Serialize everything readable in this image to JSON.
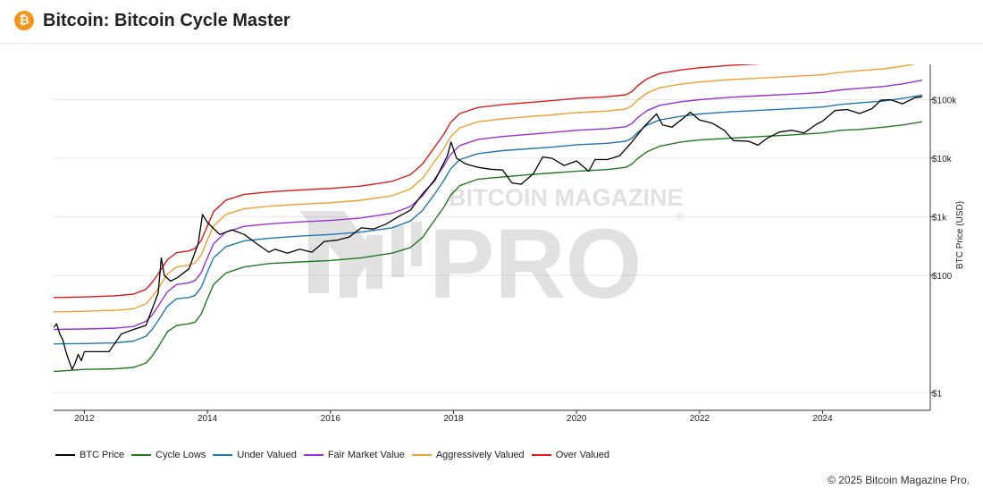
{
  "header": {
    "icon": "bitcoin-icon",
    "icon_glyph": "₿",
    "title": "Bitcoin: Bitcoin Cycle Master"
  },
  "watermark": {
    "line1": "BITCOIN MAGAZINE",
    "line2": "PRO",
    "registered": "®"
  },
  "footer": {
    "copyright": "© 2025 Bitcoin Magazine Pro."
  },
  "chart_data": {
    "type": "line",
    "title": "",
    "xlabel": "",
    "ylabel": "BTC Price (USD)",
    "yscale": "log",
    "ylim": [
      0.5,
      400000
    ],
    "xlim": [
      2011.5,
      2025.75
    ],
    "x_ticks": [
      2012,
      2014,
      2016,
      2018,
      2020,
      2022,
      2024
    ],
    "x_tick_labels": [
      "2012",
      "2014",
      "2016",
      "2018",
      "2020",
      "2022",
      "2024"
    ],
    "y_ticks": [
      1,
      100,
      1000,
      10000,
      100000
    ],
    "y_tick_labels": [
      "$1",
      "$100",
      "$1k",
      "$10k",
      "$100k"
    ],
    "grid": true,
    "legend_position": "bottom-left",
    "series": [
      {
        "name": "BTC Price",
        "color": "#000000",
        "x": [
          2011.5,
          2011.55,
          2011.6,
          2011.65,
          2011.7,
          2011.75,
          2011.8,
          2011.85,
          2011.9,
          2011.95,
          2012.0,
          2012.2,
          2012.4,
          2012.6,
          2012.8,
          2013.0,
          2013.2,
          2013.25,
          2013.3,
          2013.4,
          2013.5,
          2013.7,
          2013.85,
          2013.92,
          2014.0,
          2014.2,
          2014.4,
          2014.6,
          2014.8,
          2015.0,
          2015.1,
          2015.3,
          2015.5,
          2015.7,
          2015.9,
          2016.1,
          2016.3,
          2016.5,
          2016.7,
          2016.9,
          2017.1,
          2017.3,
          2017.5,
          2017.7,
          2017.9,
          2017.96,
          2018.05,
          2018.2,
          2018.4,
          2018.6,
          2018.8,
          2018.95,
          2019.1,
          2019.3,
          2019.45,
          2019.6,
          2019.8,
          2020.0,
          2020.2,
          2020.3,
          2020.5,
          2020.7,
          2020.9,
          2021.1,
          2021.3,
          2021.4,
          2021.55,
          2021.7,
          2021.85,
          2022.0,
          2022.2,
          2022.4,
          2022.55,
          2022.8,
          2022.95,
          2023.1,
          2023.3,
          2023.5,
          2023.7,
          2023.9,
          2024.0,
          2024.2,
          2024.4,
          2024.6,
          2024.8,
          2024.95,
          2025.1,
          2025.3,
          2025.5,
          2025.62
        ],
        "values": [
          13,
          15,
          10,
          8,
          5,
          3.5,
          2.5,
          3.2,
          4.5,
          3.5,
          5,
          5,
          5,
          10,
          12,
          14,
          50,
          200,
          100,
          80,
          90,
          130,
          350,
          1100,
          800,
          500,
          600,
          500,
          350,
          250,
          280,
          240,
          280,
          250,
          380,
          400,
          450,
          650,
          620,
          750,
          1000,
          1300,
          2500,
          4200,
          11000,
          19000,
          10000,
          8000,
          7000,
          6500,
          6300,
          3800,
          3600,
          5500,
          10500,
          10000,
          7500,
          9000,
          6000,
          9500,
          9500,
          11000,
          19000,
          35000,
          57000,
          37000,
          34000,
          45000,
          61000,
          45000,
          40000,
          30000,
          20000,
          19500,
          16700,
          22000,
          28000,
          30000,
          27000,
          38000,
          43000,
          65000,
          68000,
          58000,
          70000,
          98000,
          100000,
          85000,
          108000,
          112000
        ]
      },
      {
        "name": "Cycle Lows",
        "color": "#1f7a1f",
        "x": [
          2011.5,
          2012.0,
          2012.5,
          2012.8,
          2013.0,
          2013.1,
          2013.2,
          2013.35,
          2013.5,
          2013.7,
          2013.8,
          2013.9,
          2014.0,
          2014.1,
          2014.3,
          2014.6,
          2015.0,
          2015.5,
          2016.0,
          2016.5,
          2017.0,
          2017.3,
          2017.5,
          2017.7,
          2017.85,
          2017.95,
          2018.1,
          2018.4,
          2018.8,
          2019.2,
          2019.6,
          2020.0,
          2020.5,
          2020.8,
          2020.9,
          2021.0,
          2021.15,
          2021.35,
          2021.7,
          2022.0,
          2022.5,
          2023.0,
          2023.5,
          2024.0,
          2024.3,
          2024.6,
          2025.0,
          2025.3,
          2025.62
        ],
        "values": [
          2.3,
          2.5,
          2.55,
          2.7,
          3.2,
          4.2,
          6,
          11,
          14,
          15,
          16,
          22,
          40,
          70,
          110,
          140,
          160,
          170,
          180,
          200,
          240,
          300,
          450,
          900,
          1500,
          2300,
          3400,
          4400,
          4800,
          5200,
          5600,
          6000,
          6400,
          7000,
          8000,
          10000,
          13000,
          16000,
          19000,
          20500,
          22000,
          23500,
          25000,
          27000,
          30000,
          31000,
          34000,
          37000,
          42000
        ]
      },
      {
        "name": "Under Valued",
        "color": "#1f77b4",
        "x": [
          2011.5,
          2012.0,
          2012.5,
          2012.8,
          2013.0,
          2013.1,
          2013.2,
          2013.35,
          2013.5,
          2013.7,
          2013.8,
          2013.9,
          2014.0,
          2014.1,
          2014.3,
          2014.6,
          2015.0,
          2015.5,
          2016.0,
          2016.5,
          2017.0,
          2017.3,
          2017.5,
          2017.7,
          2017.85,
          2017.95,
          2018.1,
          2018.4,
          2018.8,
          2019.2,
          2019.6,
          2020.0,
          2020.5,
          2020.8,
          2020.9,
          2021.0,
          2021.15,
          2021.35,
          2021.7,
          2022.0,
          2022.5,
          2023.0,
          2023.5,
          2024.0,
          2024.3,
          2024.6,
          2025.0,
          2025.3,
          2025.62
        ],
        "values": [
          6.8,
          6.9,
          7.1,
          7.6,
          9.2,
          12,
          17,
          30,
          40,
          42,
          46,
          63,
          115,
          200,
          310,
          390,
          430,
          470,
          500,
          550,
          650,
          850,
          1300,
          2500,
          4300,
          6500,
          9500,
          12000,
          13500,
          14500,
          15500,
          17000,
          18000,
          19500,
          22000,
          28000,
          37000,
          45000,
          52000,
          57000,
          62000,
          66000,
          70000,
          75000,
          83000,
          88000,
          95000,
          105000,
          120000
        ]
      },
      {
        "name": "Fair Market Value",
        "color": "#9b30d9",
        "x": [
          2011.5,
          2012.0,
          2012.5,
          2012.8,
          2013.0,
          2013.1,
          2013.2,
          2013.35,
          2013.5,
          2013.7,
          2013.8,
          2013.9,
          2014.0,
          2014.1,
          2014.3,
          2014.6,
          2015.0,
          2015.5,
          2016.0,
          2016.5,
          2017.0,
          2017.3,
          2017.5,
          2017.7,
          2017.85,
          2017.95,
          2018.1,
          2018.4,
          2018.8,
          2019.2,
          2019.6,
          2020.0,
          2020.5,
          2020.8,
          2020.9,
          2021.0,
          2021.15,
          2021.35,
          2021.7,
          2022.0,
          2022.5,
          2023.0,
          2023.5,
          2024.0,
          2024.3,
          2024.6,
          2025.0,
          2025.3,
          2025.62
        ],
        "values": [
          12,
          12.2,
          12.6,
          13.5,
          16.5,
          21,
          30,
          53,
          70,
          75,
          82,
          112,
          200,
          350,
          550,
          690,
          760,
          820,
          870,
          960,
          1150,
          1500,
          2300,
          4500,
          7600,
          11500,
          16500,
          21000,
          23500,
          25500,
          27500,
          30000,
          32000,
          34500,
          39000,
          50000,
          65000,
          80000,
          92000,
          100000,
          110000,
          117000,
          124000,
          133000,
          147000,
          156000,
          168000,
          186000,
          215000
        ]
      },
      {
        "name": "Aggressively Valued",
        "color": "#f0a030",
        "x": [
          2011.5,
          2012.0,
          2012.5,
          2012.8,
          2013.0,
          2013.1,
          2013.2,
          2013.35,
          2013.5,
          2013.7,
          2013.8,
          2013.9,
          2014.0,
          2014.1,
          2014.3,
          2014.6,
          2015.0,
          2015.5,
          2016.0,
          2016.5,
          2017.0,
          2017.3,
          2017.5,
          2017.7,
          2017.85,
          2017.95,
          2018.1,
          2018.4,
          2018.8,
          2019.2,
          2019.6,
          2020.0,
          2020.5,
          2020.8,
          2020.9,
          2021.0,
          2021.15,
          2021.35,
          2021.7,
          2022.0,
          2022.5,
          2023.0,
          2023.5,
          2024.0,
          2024.3,
          2024.6,
          2025.0,
          2025.3,
          2025.62
        ],
        "values": [
          24,
          24.5,
          25.5,
          27,
          33,
          43,
          60,
          106,
          140,
          150,
          165,
          225,
          400,
          700,
          1100,
          1380,
          1520,
          1640,
          1740,
          1920,
          2300,
          3000,
          4600,
          9000,
          15000,
          23000,
          33000,
          42000,
          47000,
          51000,
          55000,
          60000,
          64000,
          69000,
          78000,
          100000,
          130000,
          160000,
          184000,
          200000,
          220000,
          234000,
          248000,
          266000,
          294000,
          312000,
          336000,
          372000,
          430000
        ]
      },
      {
        "name": "Over Valued",
        "color": "#e0191b",
        "x": [
          2011.5,
          2012.0,
          2012.5,
          2012.8,
          2013.0,
          2013.1,
          2013.2,
          2013.35,
          2013.5,
          2013.7,
          2013.8,
          2013.9,
          2014.0,
          2014.1,
          2014.3,
          2014.6,
          2015.0,
          2015.5,
          2016.0,
          2016.5,
          2017.0,
          2017.3,
          2017.5,
          2017.7,
          2017.85,
          2017.95,
          2018.1,
          2018.4,
          2018.8,
          2019.2,
          2019.6,
          2020.0,
          2020.5,
          2020.8,
          2020.9,
          2021.0,
          2021.15,
          2021.35,
          2021.7,
          2022.0,
          2022.5,
          2023.0,
          2023.5,
          2024.0,
          2024.3,
          2024.6,
          2025.0,
          2025.3,
          2025.62
        ],
        "values": [
          42,
          43,
          45,
          48,
          58,
          76,
          106,
          186,
          245,
          262,
          290,
          395,
          700,
          1230,
          1930,
          2420,
          2660,
          2870,
          3050,
          3360,
          4030,
          5250,
          8050,
          15800,
          26300,
          40300,
          58000,
          73500,
          82000,
          89000,
          96000,
          105000,
          112000,
          121000,
          137000,
          175000,
          228000,
          280000,
          322000,
          350000,
          385000,
          410000,
          434000,
          466000,
          515000,
          546000,
          588000,
          651000,
          750000
        ]
      }
    ]
  }
}
